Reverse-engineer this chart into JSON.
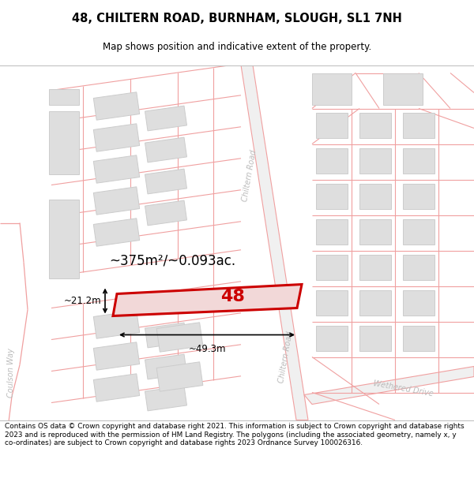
{
  "title": "48, CHILTERN ROAD, BURNHAM, SLOUGH, SL1 7NH",
  "subtitle": "Map shows position and indicative extent of the property.",
  "footer": "Contains OS data © Crown copyright and database right 2021. This information is subject to Crown copyright and database rights 2023 and is reproduced with the permission of HM Land Registry. The polygons (including the associated geometry, namely x, y co-ordinates) are subject to Crown copyright and database rights 2023 Ordnance Survey 100026316.",
  "area_label": "~375m²/~0.093ac.",
  "width_label": "~49.3m",
  "height_label": "~21.2m",
  "property_number": "48",
  "map_bg": "#f7f7f7",
  "road_line_color": "#f0a0a0",
  "building_color": "#dedede",
  "building_edge": "#cccccc",
  "highlight_color": "#cc0000",
  "street_name_upper": "Chiltern Road",
  "street_name_lower": "Chiltern Road",
  "street_name_wethered": "Wethered Drive",
  "street_name_coulson": "Coulson Way"
}
